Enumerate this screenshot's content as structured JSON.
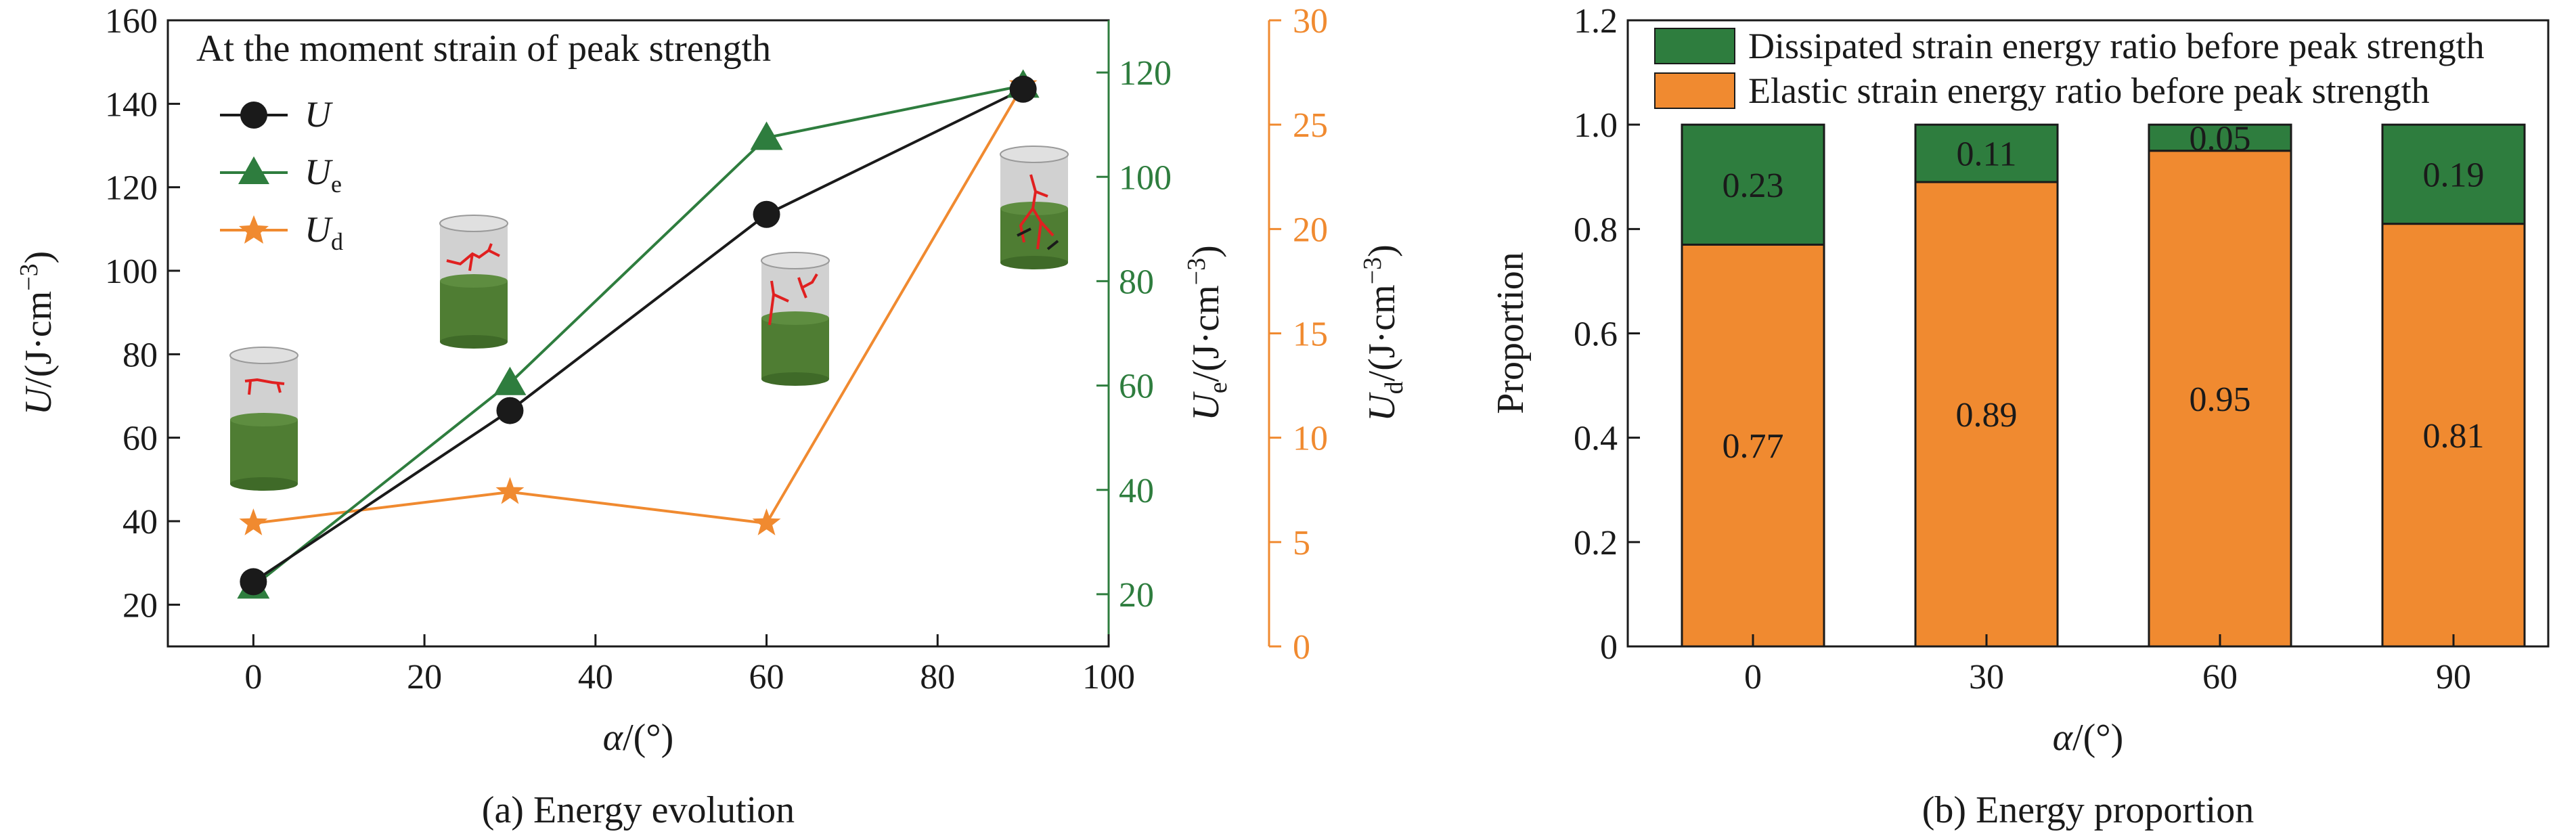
{
  "colors": {
    "black": "#1a1a1a",
    "green": "#2e7d3e",
    "orange": "#f08a30",
    "bar_green": "#2e7d3e",
    "bar_orange": "#f08a30",
    "specimen_green": "#4f7d33",
    "specimen_grey": "#c8c8c8",
    "crack_red": "#e02020"
  },
  "chart_data": [
    {
      "type": "line",
      "caption": "(a) Energy evolution",
      "annotation": "At the moment strain of peak strength",
      "xlabel": "α/(°)",
      "ylabel_left": "U/(J·cm⁻³)",
      "ylabel_right1": "Ue/(J·cm⁻³)",
      "ylabel_right2": "Ud/(J·cm⁻³)",
      "x_ticks": [
        "0",
        "20",
        "40",
        "60",
        "80",
        "100"
      ],
      "xlim": [
        -10,
        100
      ],
      "y_left_ticks": [
        "20",
        "40",
        "60",
        "80",
        "100",
        "120",
        "140",
        "160"
      ],
      "y_left_lim": [
        10,
        160
      ],
      "y_right1_ticks": [
        "20",
        "40",
        "60",
        "80",
        "100",
        "120"
      ],
      "y_right1_lim": [
        10,
        130
      ],
      "y_right2_ticks": [
        "0",
        "5",
        "10",
        "15",
        "20",
        "25",
        "30"
      ],
      "y_right2_lim": [
        0,
        30
      ],
      "legend": [
        "U",
        "Ue",
        "Ud"
      ],
      "series": [
        {
          "name": "U",
          "axis": "left",
          "x": [
            0,
            30,
            60,
            90
          ],
          "values": [
            25.5,
            66.5,
            113.5,
            143.5
          ]
        },
        {
          "name": "Ue",
          "axis": "right1",
          "x": [
            0,
            30,
            60,
            90
          ],
          "values": [
            21.5,
            60.5,
            107.5,
            117.5
          ]
        },
        {
          "name": "Ud",
          "axis": "right2",
          "x": [
            0,
            30,
            60,
            90
          ],
          "values": [
            5.9,
            7.4,
            5.9,
            26.9
          ]
        }
      ]
    },
    {
      "type": "bar",
      "stacked": true,
      "caption": "(b) Energy proportion",
      "xlabel": "α/(°)",
      "ylabel": "Proportion",
      "categories": [
        "0",
        "30",
        "60",
        "90"
      ],
      "y_ticks": [
        "0",
        "0.2",
        "0.4",
        "0.6",
        "0.8",
        "1.0",
        "1.2"
      ],
      "ylim": [
        0,
        1.2
      ],
      "series": [
        {
          "name": "Elastic strain energy ratio before peak strength",
          "values": [
            0.77,
            0.89,
            0.95,
            0.81
          ],
          "labels": [
            "0.77",
            "0.89",
            "0.95",
            "0.81"
          ]
        },
        {
          "name": "Dissipated strain energy ratio before peak strength",
          "values": [
            0.23,
            0.11,
            0.05,
            0.19
          ],
          "labels": [
            "0.23",
            "0.11",
            "0.05",
            "0.19"
          ]
        }
      ]
    }
  ]
}
